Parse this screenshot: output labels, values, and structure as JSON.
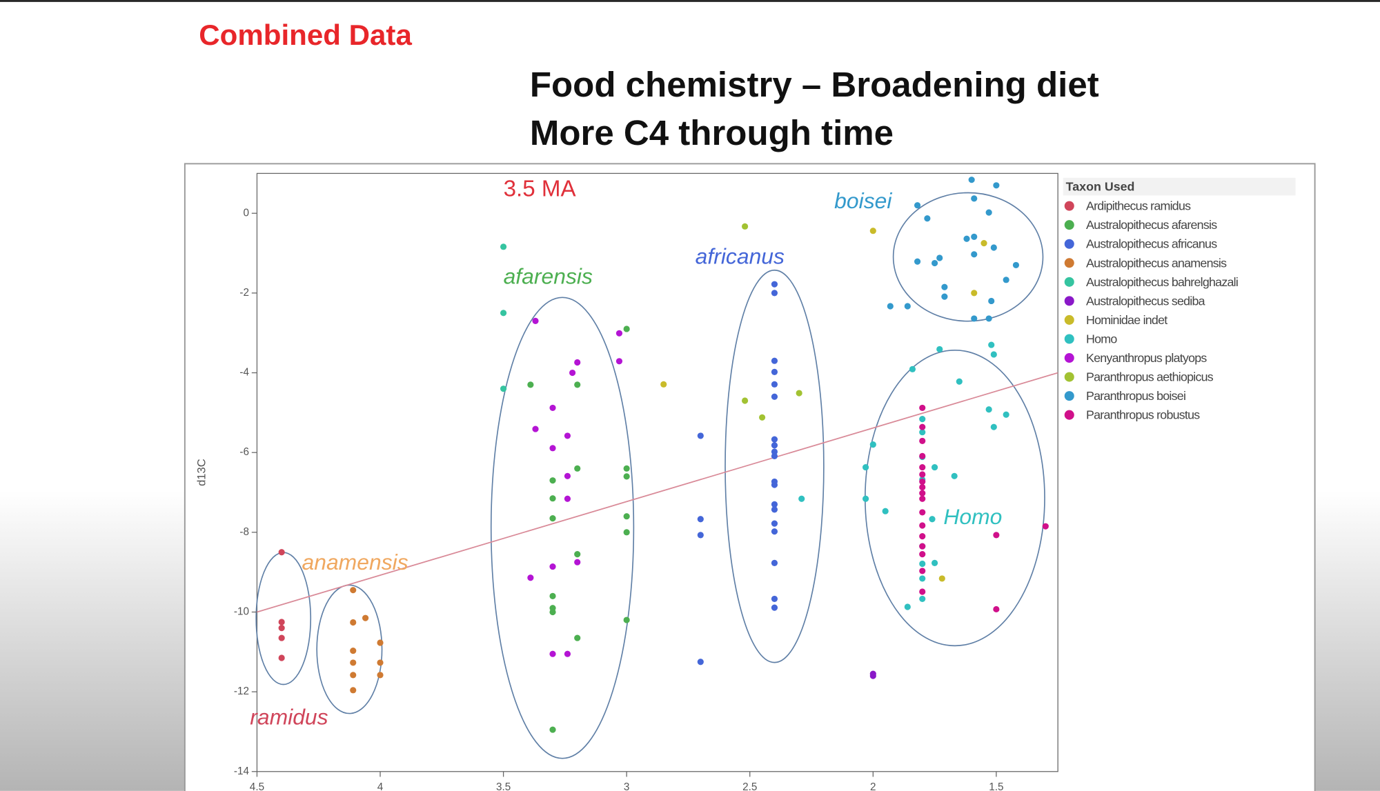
{
  "slide": {
    "label": "Combined Data",
    "title": [
      "Food chemistry – Broadening diet",
      "More C4 through time"
    ]
  },
  "chart_data": {
    "type": "scatter",
    "y_label": "d13C",
    "legend_title": "Taxon Used",
    "annotations": [
      "3.5 MA",
      "afarensis",
      "africanus",
      "boisei",
      "anamensis",
      "ramidus",
      "Homo"
    ],
    "xlim": [
      4.5,
      1.25
    ],
    "ylim": [
      -14,
      1
    ],
    "xticks": [
      4.5,
      4,
      3.5,
      3,
      2.5,
      2,
      1.5
    ],
    "yticks": [
      0,
      -2,
      -4,
      -6,
      -8,
      -10,
      -12,
      -14
    ],
    "legend": "right",
    "trend_line": {
      "color": "#d98a98",
      "x": [
        4.5,
        1.25
      ],
      "y": [
        -10.0,
        -4.0
      ]
    },
    "series": [
      {
        "name": "Ardipithecus ramidus",
        "color": "#d0455a",
        "x": [
          4.4,
          4.4,
          4.4,
          4.4,
          4.4
        ],
        "y": [
          -8.5,
          -10.25,
          -10.4,
          -10.65,
          -11.15
        ]
      },
      {
        "name": "Australopithecus afarensis",
        "color": "#4caf50",
        "x": [
          3.39,
          3.2,
          3.3,
          3.2,
          3.3,
          3.3,
          3.2,
          3.3,
          3.3,
          3.3,
          3.2,
          3.3,
          3.0,
          3.0,
          3.0,
          3.0,
          3.0,
          3.0
        ],
        "y": [
          -4.3,
          -4.3,
          -6.7,
          -6.4,
          -7.15,
          -7.65,
          -8.55,
          -9.6,
          -9.9,
          -10.0,
          -10.65,
          -12.95,
          -6.4,
          -6.6,
          -7.6,
          -8.0,
          -10.2,
          -2.9
        ]
      },
      {
        "name": "Australopithecus africanus",
        "color": "#4466d8",
        "x": [
          2.4,
          2.4,
          2.4,
          2.4,
          2.4,
          2.4,
          2.4,
          2.4,
          2.4,
          2.4,
          2.4,
          2.4,
          2.4,
          2.4,
          2.4,
          2.4,
          2.4,
          2.4,
          2.4,
          2.7,
          2.7,
          2.7,
          2.7
        ],
        "y": [
          -1.78,
          -2.0,
          -3.7,
          -3.98,
          -4.29,
          -4.6,
          -5.67,
          -5.82,
          -5.98,
          -6.09,
          -6.73,
          -6.81,
          -7.3,
          -7.43,
          -7.78,
          -7.98,
          -8.77,
          -9.67,
          -9.89,
          -5.58,
          -7.67,
          -8.07,
          -11.25
        ]
      },
      {
        "name": "Australopithecus anamensis",
        "color": "#cf7a32",
        "x": [
          4.11,
          4.11,
          4.11,
          4.11,
          4.11,
          4.11,
          4.06,
          4.0,
          4.0,
          4.0
        ],
        "y": [
          -9.45,
          -10.26,
          -10.97,
          -11.27,
          -11.58,
          -11.96,
          -10.15,
          -10.77,
          -11.27,
          -11.58
        ]
      },
      {
        "name": "Australopithecus bahrelghazali",
        "color": "#35c4a0",
        "x": [
          3.5,
          3.5,
          3.5
        ],
        "y": [
          -0.84,
          -2.5,
          -4.4
        ]
      },
      {
        "name": "Australopithecus sediba",
        "color": "#8a18c8",
        "x": [
          2.0,
          2.0
        ],
        "y": [
          -11.6,
          -11.55
        ]
      },
      {
        "name": "Hominidae indet",
        "color": "#c9bb2a",
        "x": [
          2.85,
          2.0,
          1.55,
          1.59,
          1.72
        ],
        "y": [
          -4.29,
          -0.44,
          -0.75,
          -2.0,
          -9.16
        ]
      },
      {
        "name": "Homo",
        "color": "#30c0c0",
        "x": [
          1.84,
          1.73,
          1.65,
          1.52,
          1.51,
          1.53,
          1.51,
          1.46,
          2.0,
          2.03,
          2.03,
          1.95,
          1.8,
          1.8,
          1.8,
          1.8,
          1.75,
          1.67,
          1.76,
          1.8,
          1.8,
          1.75,
          1.8,
          1.86,
          1.8,
          2.29
        ],
        "y": [
          -3.91,
          -3.41,
          -4.22,
          -3.3,
          -3.54,
          -4.92,
          -5.36,
          -5.05,
          -5.8,
          -6.37,
          -7.16,
          -7.47,
          -5.16,
          -5.49,
          -6.11,
          -6.68,
          -6.37,
          -6.59,
          -7.67,
          -8.35,
          -8.79,
          -8.77,
          -9.16,
          -9.87,
          -9.67,
          -7.16
        ]
      },
      {
        "name": "Kenyanthropus platyops",
        "color": "#b414d4",
        "x": [
          3.37,
          3.37,
          3.3,
          3.3,
          3.24,
          3.2,
          3.22,
          3.24,
          3.24,
          3.39,
          3.3,
          3.2,
          3.3,
          3.24,
          3.03,
          3.03
        ],
        "y": [
          -2.7,
          -5.41,
          -4.88,
          -5.89,
          -5.58,
          -3.74,
          -4.0,
          -6.59,
          -7.16,
          -9.14,
          -8.86,
          -8.75,
          -11.05,
          -11.05,
          -3.71,
          -3.01
        ]
      },
      {
        "name": "Paranthropus aethiopicus",
        "color": "#a2c232",
        "x": [
          2.52,
          2.52,
          2.45,
          2.3
        ],
        "y": [
          -0.33,
          -4.7,
          -5.12,
          -4.51
        ]
      },
      {
        "name": "Paranthropus boisei",
        "color": "#3399cc",
        "x": [
          1.6,
          1.5,
          1.59,
          1.82,
          1.53,
          1.78,
          1.62,
          1.59,
          1.51,
          1.82,
          1.75,
          1.73,
          1.59,
          1.42,
          1.46,
          1.71,
          1.71,
          1.52,
          1.93,
          1.86,
          1.59,
          1.53
        ],
        "y": [
          0.84,
          0.7,
          0.37,
          0.2,
          0.02,
          -0.13,
          -0.64,
          -0.59,
          -0.86,
          -1.21,
          -1.25,
          -1.12,
          -1.03,
          -1.3,
          -1.67,
          -1.85,
          -2.09,
          -2.2,
          -2.33,
          -2.33,
          -2.64,
          -2.64
        ]
      },
      {
        "name": "Paranthropus robustus",
        "color": "#d0108a",
        "x": [
          1.8,
          1.8,
          1.8,
          1.8,
          1.8,
          1.8,
          1.8,
          1.8,
          1.8,
          1.8,
          1.8,
          1.8,
          1.8,
          1.8,
          1.8,
          1.8,
          1.8,
          1.5,
          1.5,
          1.3
        ],
        "y": [
          -4.88,
          -5.36,
          -5.71,
          -6.09,
          -6.37,
          -6.55,
          -6.73,
          -6.87,
          -7.02,
          -7.16,
          -7.5,
          -7.83,
          -8.1,
          -8.35,
          -8.55,
          -8.97,
          -9.49,
          -8.07,
          -9.93,
          -7.85
        ]
      }
    ]
  }
}
